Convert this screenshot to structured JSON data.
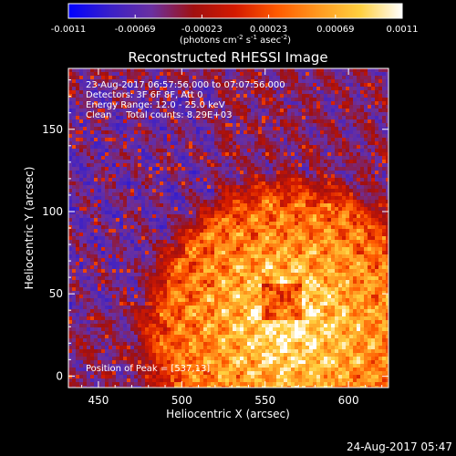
{
  "chart_data": {
    "type": "heatmap",
    "title": "Reconstructed RHESSI Image",
    "xlabel": "Heliocentric X (arcsec)",
    "ylabel": "Heliocentric Y (arcsec)",
    "xlim": [
      432,
      624
    ],
    "ylim": [
      -7,
      187
    ],
    "x_ticks": [
      450,
      500,
      550,
      600
    ],
    "y_ticks": [
      0,
      50,
      100,
      150
    ],
    "colorbar": {
      "label_main": "(photons cm",
      "sup1": "-2",
      "label_mid1": " s",
      "sup2": "-1",
      "label_mid2": " asec",
      "sup3": "-2",
      "label_end": ")",
      "range": [
        -0.0011,
        0.0011
      ],
      "ticks": [
        "-0.0011",
        "-0.00069",
        "-0.00023",
        "0.00023",
        "0.00069",
        "0.0011"
      ],
      "colors": [
        "#0000ff",
        "#3a20c8",
        "#6a30a0",
        "#a01010",
        "#d41a00",
        "#ff5a00",
        "#ff9a20",
        "#ffd040",
        "#ffffff"
      ]
    },
    "annotations": [
      "23-Aug-2017 06:57:56.000 to 07:07:56.000",
      "Detectors: 3F 6F 8F, Att 0",
      "Energy Range: 12.0 - 25.0 keV",
      "Clean     Total counts: 8.29E+03"
    ],
    "peak_label": "Position of Peak = [537,13]",
    "source": {
      "center": [
        565,
        30
      ],
      "radius": 78
    },
    "grid": false
  },
  "footer": {
    "timestamp": "24-Aug-2017 05:47"
  }
}
